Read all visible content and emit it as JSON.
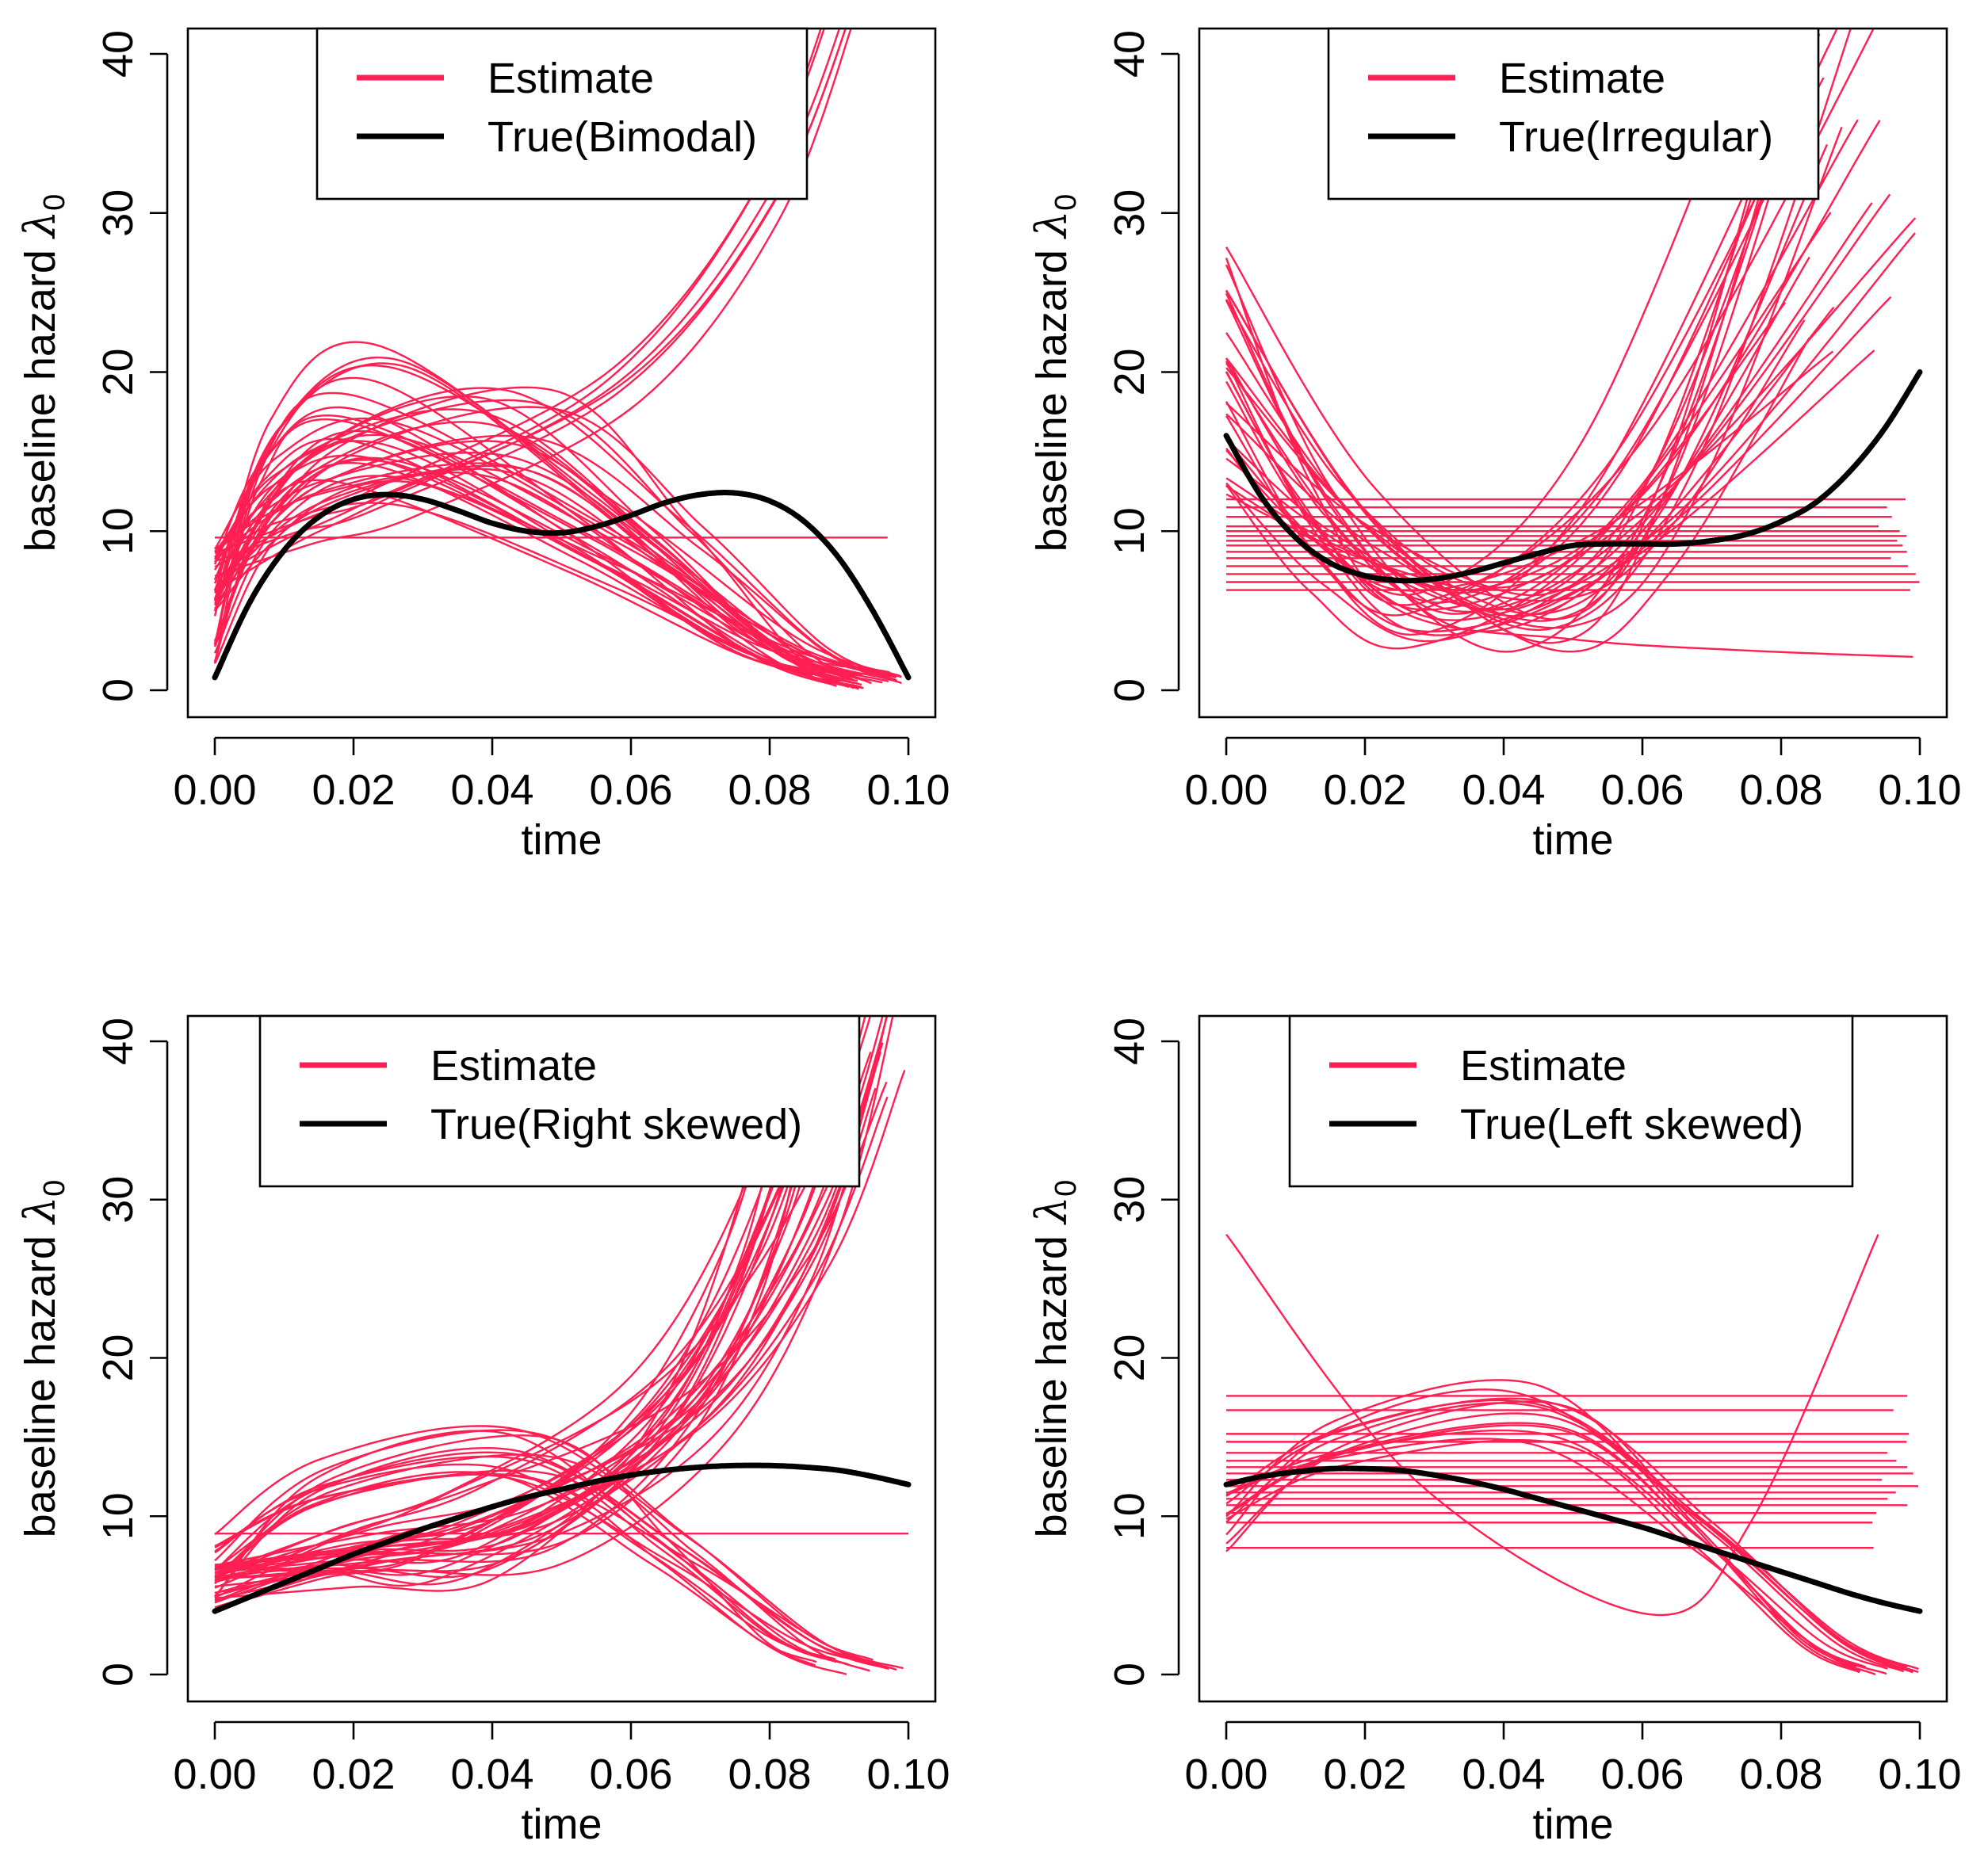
{
  "colors": {
    "estimate": "#ff1f52",
    "truth": "#000000",
    "frame": "#000000",
    "background": "#ffffff"
  },
  "chart_data": [
    {
      "type": "line",
      "title": "",
      "xlabel": "time",
      "ylabel_prefix": "baseline hazard ",
      "ylabel_symbol": "λ",
      "ylabel_subscript": "0",
      "xlim": [
        0.0,
        0.1
      ],
      "ylim": [
        0,
        40
      ],
      "x_ticks": [
        "0.00",
        "0.02",
        "0.04",
        "0.06",
        "0.08",
        "0.10"
      ],
      "y_ticks": [
        "0",
        "10",
        "20",
        "30",
        "40"
      ],
      "legend": {
        "position": "top",
        "entries": [
          "Estimate",
          "True(Bimodal)"
        ]
      },
      "true_curve": {
        "name": "True(Bimodal)",
        "x": [
          0.0,
          0.005,
          0.01,
          0.015,
          0.02,
          0.025,
          0.03,
          0.035,
          0.04,
          0.045,
          0.05,
          0.055,
          0.06,
          0.065,
          0.07,
          0.075,
          0.08,
          0.085,
          0.09,
          0.095,
          0.1
        ],
        "y": [
          0.8,
          5.5,
          8.8,
          10.9,
          12.0,
          12.3,
          12.0,
          11.3,
          10.5,
          10.0,
          9.9,
          10.3,
          11.0,
          11.8,
          12.3,
          12.4,
          11.9,
          10.6,
          8.3,
          4.9,
          0.8
        ]
      },
      "estimate_families": [
        {
          "kind": "hump",
          "count": 22,
          "start": [
            0.5,
            9.5
          ],
          "peak_x": [
            0.018,
            0.028
          ],
          "peak_y": [
            11.0,
            22.0
          ],
          "end_x": [
            0.085,
            0.1
          ],
          "end_y": [
            0.0,
            1.5
          ]
        },
        {
          "kind": "hump",
          "count": 14,
          "start": [
            5.0,
            9.0
          ],
          "peak_x": [
            0.038,
            0.05
          ],
          "peak_y": [
            13.0,
            19.3
          ],
          "end_x": [
            0.09,
            0.1
          ],
          "end_y": [
            0.0,
            1.0
          ]
        },
        {
          "kind": "rise",
          "count": 6,
          "start": [
            6.0,
            9.0
          ],
          "mid_x": [
            0.02,
            0.03
          ],
          "mid_y": [
            10.0,
            13.0
          ],
          "end_x": [
            0.09,
            0.097
          ],
          "end_y": [
            42.0,
            48.0
          ]
        },
        {
          "kind": "flat",
          "count": 1,
          "levels": [
            9.6
          ],
          "x_end": [
            0.097,
            0.097
          ]
        }
      ]
    },
    {
      "type": "line",
      "title": "",
      "xlabel": "time",
      "ylabel_prefix": "baseline hazard ",
      "ylabel_symbol": "λ",
      "ylabel_subscript": "0",
      "xlim": [
        0.0,
        0.1
      ],
      "ylim": [
        0,
        40
      ],
      "x_ticks": [
        "0.00",
        "0.02",
        "0.04",
        "0.06",
        "0.08",
        "0.10"
      ],
      "y_ticks": [
        "0",
        "10",
        "20",
        "30",
        "40"
      ],
      "legend": {
        "position": "top",
        "entries": [
          "Estimate",
          "True(Irregular)"
        ]
      },
      "true_curve": {
        "name": "True(Irregular)",
        "x": [
          0.0,
          0.005,
          0.01,
          0.015,
          0.02,
          0.025,
          0.03,
          0.035,
          0.04,
          0.045,
          0.05,
          0.055,
          0.06,
          0.065,
          0.07,
          0.075,
          0.08,
          0.085,
          0.09,
          0.095,
          0.1
        ],
        "y": [
          16.0,
          12.2,
          9.6,
          8.0,
          7.2,
          6.9,
          7.0,
          7.4,
          8.0,
          8.6,
          9.1,
          9.2,
          9.2,
          9.2,
          9.4,
          9.8,
          10.6,
          11.8,
          13.8,
          16.5,
          20.0
        ]
      },
      "estimate_families": [
        {
          "kind": "bowl",
          "count": 30,
          "start": [
            12.0,
            28.5
          ],
          "min_x": [
            0.025,
            0.05
          ],
          "min_y": [
            2.5,
            6.5
          ],
          "end_x": [
            0.08,
            0.1
          ],
          "end_y": [
            20.0,
            48.0
          ]
        },
        {
          "kind": "decay",
          "count": 1,
          "start": [
            20.0,
            20.0
          ],
          "end_x": [
            0.099,
            0.099
          ],
          "end_y": [
            2.1,
            2.1
          ]
        },
        {
          "kind": "flat",
          "count": 14,
          "levels": [
            6.3,
            6.8,
            7.3,
            7.8,
            8.3,
            8.7,
            9.1,
            9.4,
            9.7,
            10.0,
            10.3,
            10.9,
            11.5,
            12.0
          ],
          "x_end": [
            0.094,
            0.1
          ]
        }
      ]
    },
    {
      "type": "line",
      "title": "",
      "xlabel": "time",
      "ylabel_prefix": "baseline hazard ",
      "ylabel_symbol": "λ",
      "ylabel_subscript": "0",
      "xlim": [
        0.0,
        0.1
      ],
      "ylim": [
        0,
        40
      ],
      "x_ticks": [
        "0.00",
        "0.02",
        "0.04",
        "0.06",
        "0.08",
        "0.10"
      ],
      "y_ticks": [
        "0",
        "10",
        "20",
        "30",
        "40"
      ],
      "legend": {
        "position": "top",
        "entries": [
          "Estimate",
          "True(Right skewed)"
        ]
      },
      "true_curve": {
        "name": "True(Right skewed)",
        "x": [
          0.0,
          0.005,
          0.01,
          0.015,
          0.02,
          0.025,
          0.03,
          0.035,
          0.04,
          0.045,
          0.05,
          0.055,
          0.06,
          0.065,
          0.07,
          0.075,
          0.08,
          0.085,
          0.09,
          0.095,
          0.1
        ],
        "y": [
          4.0,
          4.9,
          5.8,
          6.7,
          7.6,
          8.4,
          9.2,
          9.9,
          10.6,
          11.2,
          11.7,
          12.2,
          12.6,
          12.9,
          13.1,
          13.2,
          13.2,
          13.1,
          12.9,
          12.5,
          12.0
        ]
      },
      "estimate_families": [
        {
          "kind": "rise",
          "count": 34,
          "start": [
            4.0,
            7.0
          ],
          "mid_x": [
            0.03,
            0.05
          ],
          "mid_y": [
            6.0,
            12.0
          ],
          "end_x": [
            0.082,
            0.1
          ],
          "end_y": [
            35.0,
            48.0
          ]
        },
        {
          "kind": "hump",
          "count": 14,
          "start": [
            4.0,
            9.0
          ],
          "peak_x": [
            0.04,
            0.05
          ],
          "peak_y": [
            12.0,
            16.8
          ],
          "end_x": [
            0.085,
            0.1
          ],
          "end_y": [
            0.0,
            1.0
          ]
        },
        {
          "kind": "flat",
          "count": 1,
          "levels": [
            8.9
          ],
          "x_end": [
            0.1,
            0.1
          ]
        }
      ]
    },
    {
      "type": "line",
      "title": "",
      "xlabel": "time",
      "ylabel_prefix": "baseline hazard ",
      "ylabel_symbol": "λ",
      "ylabel_subscript": "0",
      "xlim": [
        0.0,
        0.1
      ],
      "ylim": [
        0,
        40
      ],
      "x_ticks": [
        "0.00",
        "0.02",
        "0.04",
        "0.06",
        "0.08",
        "0.10"
      ],
      "y_ticks": [
        "0",
        "10",
        "20",
        "30",
        "40"
      ],
      "legend": {
        "position": "top",
        "entries": [
          "Estimate",
          "True(Left skewed)"
        ]
      },
      "true_curve": {
        "name": "True(Left skewed)",
        "x": [
          0.0,
          0.005,
          0.01,
          0.015,
          0.02,
          0.025,
          0.03,
          0.035,
          0.04,
          0.045,
          0.05,
          0.055,
          0.06,
          0.065,
          0.07,
          0.075,
          0.08,
          0.085,
          0.09,
          0.095,
          0.1
        ],
        "y": [
          12.0,
          12.5,
          12.8,
          13.0,
          13.0,
          12.9,
          12.6,
          12.2,
          11.7,
          11.1,
          10.5,
          9.9,
          9.3,
          8.6,
          7.9,
          7.2,
          6.5,
          5.8,
          5.1,
          4.5,
          4.0
        ]
      },
      "estimate_families": [
        {
          "kind": "hump",
          "count": 12,
          "start": [
            7.5,
            12.0
          ],
          "peak_x": [
            0.042,
            0.05
          ],
          "peak_y": [
            14.0,
            19.2
          ],
          "end_x": [
            0.09,
            0.1
          ],
          "end_y": [
            0.0,
            0.5
          ]
        },
        {
          "kind": "valley",
          "count": 1,
          "start": [
            27.8,
            27.8
          ],
          "min_x": [
            0.061,
            0.061
          ],
          "min_y": [
            3.8,
            3.8
          ],
          "end_x": [
            0.094,
            0.094
          ],
          "end_y": [
            27.8,
            27.8
          ]
        },
        {
          "kind": "flat",
          "count": 16,
          "levels": [
            8.0,
            9.6,
            10.2,
            10.7,
            11.1,
            11.5,
            11.9,
            12.3,
            12.7,
            13.1,
            13.5,
            14.0,
            14.7,
            15.2,
            16.7,
            17.6
          ],
          "x_end": [
            0.093,
            0.1
          ]
        }
      ]
    }
  ]
}
